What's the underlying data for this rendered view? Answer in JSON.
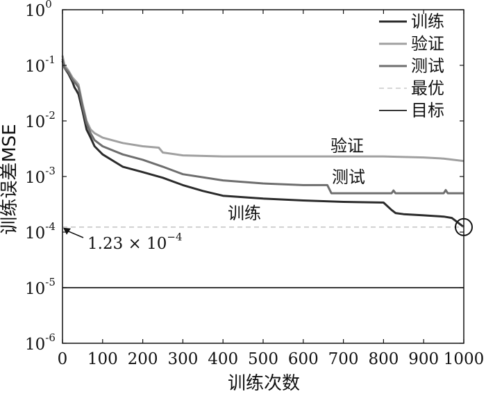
{
  "chart_data": {
    "type": "line",
    "xlabel": "训练次数",
    "ylabel": "训练误差MSE",
    "xlim": [
      0,
      1000
    ],
    "ylim": [
      1e-06,
      1
    ],
    "yscale": "log",
    "x_ticks": [
      "0",
      "100",
      "200",
      "300",
      "400",
      "500",
      "600",
      "700",
      "800",
      "900",
      "1000"
    ],
    "y_ticks": [
      {
        "base": "10",
        "exp": "0"
      },
      {
        "base": "10",
        "exp": "-1"
      },
      {
        "base": "10",
        "exp": "-2"
      },
      {
        "base": "10",
        "exp": "-3"
      },
      {
        "base": "10",
        "exp": "-4"
      },
      {
        "base": "10",
        "exp": "-5"
      },
      {
        "base": "10",
        "exp": "-6"
      }
    ],
    "legend": {
      "position": "top-right"
    },
    "series": [
      {
        "name": "训练",
        "color": "#2b2b2b",
        "style": "solid",
        "x": [
          0,
          5,
          15,
          25,
          30,
          35,
          40,
          50,
          60,
          70,
          80,
          100,
          150,
          200,
          250,
          300,
          350,
          400,
          500,
          600,
          700,
          800,
          820,
          830,
          850,
          900,
          950,
          970,
          990,
          1000
        ],
        "y": [
          0.12,
          0.09,
          0.07,
          0.05,
          0.04,
          0.035,
          0.03,
          0.015,
          0.007,
          0.005,
          0.0035,
          0.0025,
          0.0015,
          0.0012,
          0.00095,
          0.0007,
          0.00055,
          0.00045,
          0.0004,
          0.00037,
          0.00035,
          0.00034,
          0.00025,
          0.00022,
          0.00021,
          0.0002,
          0.00019,
          0.00018,
          0.00014,
          0.000123
        ]
      },
      {
        "name": "验证",
        "color": "#a0a0a0",
        "style": "solid",
        "x": [
          0,
          5,
          15,
          25,
          35,
          40,
          50,
          60,
          70,
          80,
          100,
          150,
          200,
          240,
          250,
          300,
          400,
          500,
          600,
          700,
          800,
          900,
          950,
          1000
        ],
        "y": [
          0.15,
          0.1,
          0.08,
          0.06,
          0.05,
          0.045,
          0.02,
          0.01,
          0.007,
          0.006,
          0.005,
          0.004,
          0.0035,
          0.0033,
          0.0027,
          0.0024,
          0.0023,
          0.0023,
          0.0023,
          0.0023,
          0.0023,
          0.0022,
          0.0021,
          0.0019
        ]
      },
      {
        "name": "测试",
        "color": "#6e6e6e",
        "style": "solid",
        "x": [
          0,
          5,
          15,
          25,
          35,
          40,
          50,
          60,
          70,
          80,
          100,
          150,
          200,
          250,
          300,
          400,
          500,
          600,
          660,
          670,
          700,
          800,
          820,
          825,
          830,
          900,
          950,
          955,
          960,
          1000
        ],
        "y": [
          0.13,
          0.09,
          0.075,
          0.055,
          0.045,
          0.04,
          0.018,
          0.009,
          0.006,
          0.0045,
          0.0035,
          0.0025,
          0.002,
          0.0015,
          0.0011,
          0.00085,
          0.00075,
          0.0007,
          0.0007,
          0.0005,
          0.0005,
          0.0005,
          0.0005,
          0.00056,
          0.0005,
          0.0005,
          0.0005,
          0.00057,
          0.0005,
          0.0005
        ]
      },
      {
        "name": "最优",
        "color": "#bdbdbd",
        "style": "dashed",
        "x": [
          0,
          1000
        ],
        "y": [
          0.000123,
          0.000123
        ]
      },
      {
        "name": "目标",
        "color": "#1a1a1a",
        "style": "solid",
        "x": [
          0,
          1000
        ],
        "y": [
          1e-05,
          1e-05
        ]
      }
    ],
    "annotations": {
      "best_value_base": "1.23 × 10",
      "best_value_exp": "−4",
      "best_point": {
        "x": 1000,
        "y": 0.000123
      },
      "label_validation": "验证",
      "label_test": "测试",
      "label_train": "训练"
    }
  }
}
